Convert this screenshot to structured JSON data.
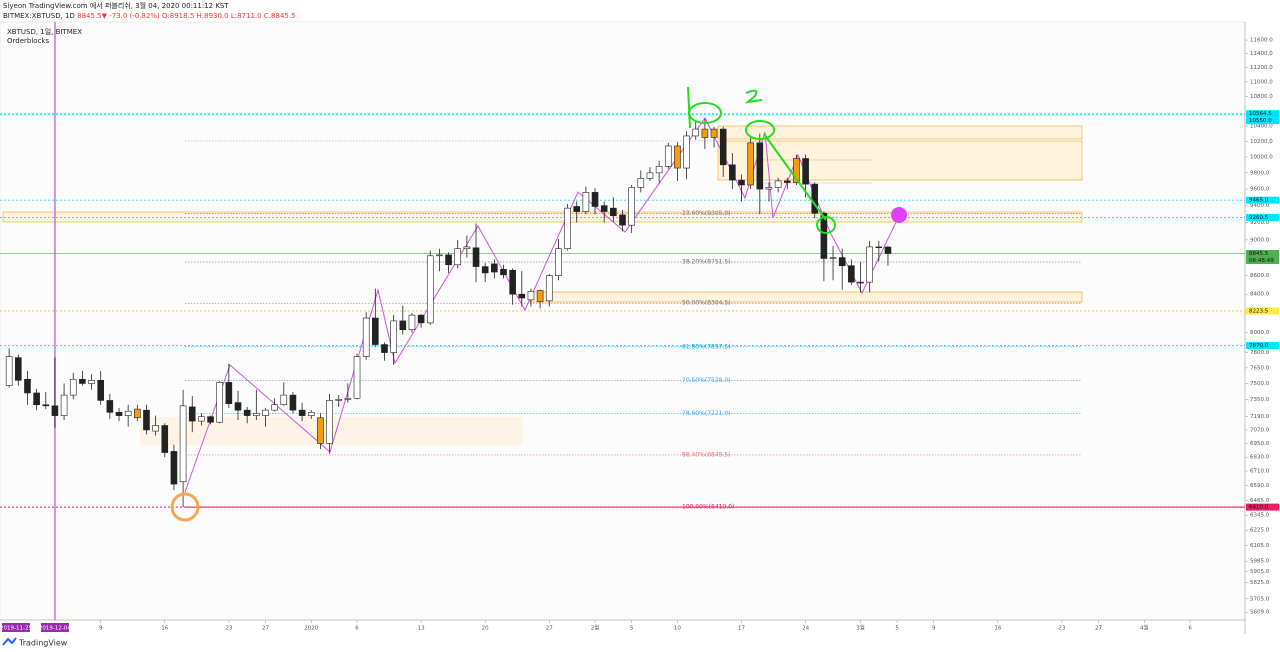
{
  "header": {
    "publisher": "Siyeon TradingView.com 에서 퍼블리쉬, 3월 04, 2020 00:11:12 KST",
    "symbol": "BITMEX:XBTUSD, 1D",
    "change": "8845.5▼ -73.0 (-0.82%)",
    "ohlc": "O:8918.5 H:8930.0 L:8711.0 C:8845.5"
  },
  "footer": {
    "brand": "TradingView"
  },
  "chart_data": {
    "type": "candlestick",
    "legend": [
      "XBTUSD, 1일, BITMEX",
      "Orderblocks"
    ],
    "log_scale": true,
    "ylim": [
      5554,
      11869
    ],
    "xlim": [
      "2019-11-28",
      "2020-04-12"
    ],
    "up_color": "#ffffff",
    "down_color": "#222222",
    "highlight_color": "#f39c12",
    "yticks": [
      {
        "value": 11600,
        "label": "11600.0"
      },
      {
        "value": 11400,
        "label": "11400.0"
      },
      {
        "value": 11200,
        "label": "11200.0"
      },
      {
        "value": 11000,
        "label": "11000.0"
      },
      {
        "value": 10800,
        "label": "10800.0"
      },
      {
        "value": 10400,
        "label": "10400.0"
      },
      {
        "value": 10200,
        "label": "10200.0"
      },
      {
        "value": 10000,
        "label": "10000.0"
      },
      {
        "value": 9800,
        "label": "9800.0"
      },
      {
        "value": 9600,
        "label": "9600.0"
      },
      {
        "value": 9400,
        "label": "9400.0"
      },
      {
        "value": 9200,
        "label": "9200.0"
      },
      {
        "value": 9000,
        "label": "9000.0"
      },
      {
        "value": 8800,
        "label": "8800.0"
      },
      {
        "value": 8600,
        "label": "8600.0"
      },
      {
        "value": 8400,
        "label": "8400.0"
      },
      {
        "value": 8200,
        "label": "8200.0"
      },
      {
        "value": 8000,
        "label": "8000.0"
      },
      {
        "value": 7800,
        "label": "7800.0"
      },
      {
        "value": 7650,
        "label": "7650.0"
      },
      {
        "value": 7500,
        "label": "7500.0"
      },
      {
        "value": 7350,
        "label": "7350.0"
      },
      {
        "value": 7190,
        "label": "7190.0"
      },
      {
        "value": 7070,
        "label": "7070.0"
      },
      {
        "value": 6950,
        "label": "6950.0"
      },
      {
        "value": 6830,
        "label": "6830.0"
      },
      {
        "value": 6710,
        "label": "6710.0"
      },
      {
        "value": 6590,
        "label": "6590.0"
      },
      {
        "value": 6465,
        "label": "6465.0"
      },
      {
        "value": 6345,
        "label": "6345.0"
      },
      {
        "value": 6225,
        "label": "6225.0"
      },
      {
        "value": 6105,
        "label": "6105.0"
      },
      {
        "value": 5985,
        "label": "5985.0"
      },
      {
        "value": 5905,
        "label": "5905.0"
      },
      {
        "value": 5825,
        "label": "5825.0"
      },
      {
        "value": 5705,
        "label": "5705.0"
      },
      {
        "value": 5609,
        "label": "5609.0"
      }
    ],
    "xticks": [
      {
        "value": "2019-12-09",
        "label": "9"
      },
      {
        "value": "2019-12-16",
        "label": "16"
      },
      {
        "value": "2019-12-23",
        "label": "23"
      },
      {
        "value": "2019-12-27",
        "label": "27"
      },
      {
        "value": "2020-01-01",
        "label": "2020"
      },
      {
        "value": "2020-01-06",
        "label": "6"
      },
      {
        "value": "2020-01-13",
        "label": "13"
      },
      {
        "value": "2020-01-20",
        "label": "20"
      },
      {
        "value": "2020-01-27",
        "label": "27"
      },
      {
        "value": "2020-02-01",
        "label": "2월"
      },
      {
        "value": "2020-02-05",
        "label": "5"
      },
      {
        "value": "2020-02-10",
        "label": "10"
      },
      {
        "value": "2020-02-17",
        "label": "17"
      },
      {
        "value": "2020-02-24",
        "label": "24"
      },
      {
        "value": "2020-03-01",
        "label": "3월"
      },
      {
        "value": "2020-03-05",
        "label": "5"
      },
      {
        "value": "2020-03-09",
        "label": "9"
      },
      {
        "value": "2020-03-16",
        "label": "16"
      },
      {
        "value": "2020-03-23",
        "label": "23"
      },
      {
        "value": "2020-03-27",
        "label": "27"
      },
      {
        "value": "2020-04-01",
        "label": "4월"
      },
      {
        "value": "2020-04-06",
        "label": "6"
      }
    ],
    "date_markers": [
      "2019-11-25",
      "2019-12-04"
    ],
    "fib_levels": [
      {
        "label": "23.60%(9305.0)",
        "value": 9305,
        "color": "#777777"
      },
      {
        "label": "38.20%(8751.5)",
        "value": 8751.5,
        "color": "#777777"
      },
      {
        "label": "50.00%(8304.5)",
        "value": 8304.5,
        "color": "#777777"
      },
      {
        "label": "61.80%(7857.5)",
        "value": 7857.5,
        "color": "#00acc1"
      },
      {
        "label": "70.50%(7528.0)",
        "value": 7528,
        "color": "#42a5f5"
      },
      {
        "label": "78.60%(7221.0)",
        "value": 7221,
        "color": "#42a5f5"
      },
      {
        "label": "88.40%(6849.5)",
        "value": 6849.5,
        "color": "#e57373"
      },
      {
        "label": "100.00%(6410.0)",
        "value": 6410,
        "color": "#e91e63"
      }
    ],
    "price_markers": [
      {
        "value": 10564.5,
        "label": "10564.5",
        "color": "#00e5ff"
      },
      {
        "value": 10550,
        "label": "10550.0",
        "color": "#00e5ff"
      },
      {
        "value": 9465,
        "label": "9465.0",
        "color": "#00e5ff"
      },
      {
        "value": 9260.5,
        "label": "9260.5",
        "color": "#00e5ff"
      },
      {
        "value": 8845.5,
        "label": "8845.5",
        "color": "#4caf50",
        "countdown": "06:48:49"
      },
      {
        "value": 8223.5,
        "label": "8223.5",
        "color": "#ffeb3b"
      },
      {
        "value": 7870,
        "label": "7870.0",
        "color": "#00e5ff"
      },
      {
        "value": 6410,
        "label": "6410.0",
        "color": "#e91e63"
      }
    ],
    "highlighted": [
      "2019-12-13",
      "2020-01-02",
      "2020-01-26",
      "2020-02-10",
      "2020-02-13",
      "2020-02-14",
      "2020-02-18",
      "2020-02-23"
    ],
    "x": [
      "2019-11-29",
      "2019-11-30",
      "2019-12-01",
      "2019-12-02",
      "2019-12-03",
      "2019-12-04",
      "2019-12-05",
      "2019-12-06",
      "2019-12-07",
      "2019-12-08",
      "2019-12-09",
      "2019-12-10",
      "2019-12-11",
      "2019-12-12",
      "2019-12-13",
      "2019-12-14",
      "2019-12-15",
      "2019-12-16",
      "2019-12-17",
      "2019-12-18",
      "2019-12-19",
      "2019-12-20",
      "2019-12-21",
      "2019-12-22",
      "2019-12-23",
      "2019-12-24",
      "2019-12-25",
      "2019-12-26",
      "2019-12-27",
      "2019-12-28",
      "2019-12-29",
      "2019-12-30",
      "2019-12-31",
      "2020-01-01",
      "2020-01-02",
      "2020-01-03",
      "2020-01-04",
      "2020-01-05",
      "2020-01-06",
      "2020-01-07",
      "2020-01-08",
      "2020-01-09",
      "2020-01-10",
      "2020-01-11",
      "2020-01-12",
      "2020-01-13",
      "2020-01-14",
      "2020-01-15",
      "2020-01-16",
      "2020-01-17",
      "2020-01-18",
      "2020-01-19",
      "2020-01-20",
      "2020-01-21",
      "2020-01-22",
      "2020-01-23",
      "2020-01-24",
      "2020-01-25",
      "2020-01-26",
      "2020-01-27",
      "2020-01-28",
      "2020-01-29",
      "2020-01-30",
      "2020-01-31",
      "2020-02-01",
      "2020-02-02",
      "2020-02-03",
      "2020-02-04",
      "2020-02-05",
      "2020-02-06",
      "2020-02-07",
      "2020-02-08",
      "2020-02-09",
      "2020-02-10",
      "2020-02-11",
      "2020-02-12",
      "2020-02-13",
      "2020-02-14",
      "2020-02-15",
      "2020-02-16",
      "2020-02-17",
      "2020-02-18",
      "2020-02-19",
      "2020-02-20",
      "2020-02-21",
      "2020-02-22",
      "2020-02-23",
      "2020-02-24",
      "2020-02-25",
      "2020-02-26",
      "2020-02-27",
      "2020-02-28",
      "2020-02-29",
      "2020-03-01",
      "2020-03-02",
      "2020-03-03",
      "2020-03-04"
    ],
    "open": [
      7480,
      7750,
      7540,
      7410,
      7300,
      7290,
      7200,
      7390,
      7540,
      7500,
      7530,
      7340,
      7230,
      7200,
      7260,
      7250,
      7060,
      7110,
      6880,
      6620,
      7280,
      7150,
      7190,
      7140,
      7510,
      7320,
      7250,
      7200,
      7200,
      7250,
      7300,
      7390,
      7250,
      7200,
      7180,
      6950,
      7340,
      7350,
      7360,
      7760,
      8150,
      7880,
      7800,
      8120,
      8030,
      8180,
      8100,
      8820,
      8830,
      8720,
      8900,
      8910,
      8700,
      8730,
      8670,
      8660,
      8400,
      8340,
      8440,
      8330,
      8600,
      8900,
      9390,
      9330,
      9560,
      9400,
      9370,
      9290,
      9170,
      9620,
      9730,
      9800,
      9880,
      10140,
      9860,
      10270,
      10360,
      10250,
      10360,
      9900,
      9710,
      9650,
      10180,
      9600,
      9620,
      9700,
      9680,
      9980,
      9660,
      9310,
      8790,
      8800,
      8710,
      8530,
      8530,
      8920,
      8918.5
    ],
    "high": [
      7840,
      7780,
      7620,
      7450,
      7420,
      7750,
      7500,
      7600,
      7620,
      7590,
      7620,
      7400,
      7270,
      7300,
      7300,
      7300,
      7200,
      7130,
      6940,
      7440,
      7380,
      7220,
      7200,
      7520,
      7690,
      7430,
      7280,
      7440,
      7270,
      7360,
      7510,
      7420,
      7320,
      7250,
      7220,
      7400,
      7390,
      7500,
      7790,
      8210,
      8460,
      7900,
      8180,
      8280,
      8200,
      8190,
      8880,
      8900,
      8860,
      9000,
      9050,
      9190,
      8740,
      8780,
      8720,
      8680,
      8650,
      8460,
      8450,
      8620,
      9010,
      9420,
      9450,
      9630,
      9610,
      9450,
      9500,
      9350,
      9650,
      9830,
      9870,
      9950,
      10180,
      10190,
      10330,
      10460,
      10500,
      10390,
      10390,
      10050,
      9780,
      10250,
      10300,
      9680,
      9740,
      9740,
      10030,
      10030,
      9680,
      9330,
      8930,
      8900,
      8780,
      8750,
      8990,
      8990,
      8930
    ],
    "low": [
      7460,
      7480,
      7300,
      7250,
      7260,
      7090,
      7160,
      7350,
      7480,
      7440,
      7300,
      7170,
      7150,
      7100,
      7150,
      7030,
      7020,
      6830,
      6550,
      6410,
      7050,
      7110,
      7120,
      7130,
      7270,
      7160,
      7130,
      7160,
      7100,
      7240,
      7290,
      7220,
      7150,
      7170,
      6900,
      6860,
      7280,
      7320,
      7350,
      7730,
      7860,
      7720,
      7680,
      7980,
      8000,
      8050,
      8080,
      8650,
      8630,
      8680,
      8800,
      8530,
      8530,
      8570,
      8570,
      8290,
      8270,
      8270,
      8250,
      8270,
      8550,
      8880,
      9200,
      9300,
      9300,
      9200,
      9210,
      9100,
      9080,
      9560,
      9700,
      9680,
      9850,
      9700,
      9720,
      10220,
      10100,
      10120,
      9750,
      9600,
      9450,
      9600,
      9300,
      9450,
      9560,
      9600,
      9650,
      9500,
      9250,
      8540,
      8550,
      8450,
      8500,
      8420,
      8420,
      8760,
      8711
    ],
    "close": [
      7760,
      7530,
      7410,
      7300,
      7290,
      7200,
      7390,
      7540,
      7500,
      7530,
      7340,
      7230,
      7200,
      7240,
      7180,
      7070,
      7110,
      6870,
      6600,
      7290,
      7150,
      7190,
      7140,
      7510,
      7310,
      7250,
      7200,
      7220,
      7250,
      7300,
      7390,
      7250,
      7200,
      7230,
      6950,
      7340,
      7350,
      7360,
      7760,
      8150,
      7880,
      7800,
      8120,
      8030,
      8180,
      8100,
      8820,
      8830,
      8720,
      8900,
      8920,
      8700,
      8630,
      8640,
      8610,
      8400,
      8360,
      8430,
      8320,
      8600,
      8900,
      9370,
      9330,
      9560,
      9390,
      9330,
      9280,
      9170,
      9620,
      9730,
      9800,
      9880,
      10140,
      9860,
      10270,
      10360,
      10250,
      10360,
      9900,
      9710,
      9650,
      10180,
      9600,
      9620,
      9700,
      9680,
      9980,
      9660,
      9310,
      8790,
      8800,
      8710,
      8530,
      8520,
      8920,
      8918.5,
      8845.5
    ]
  }
}
